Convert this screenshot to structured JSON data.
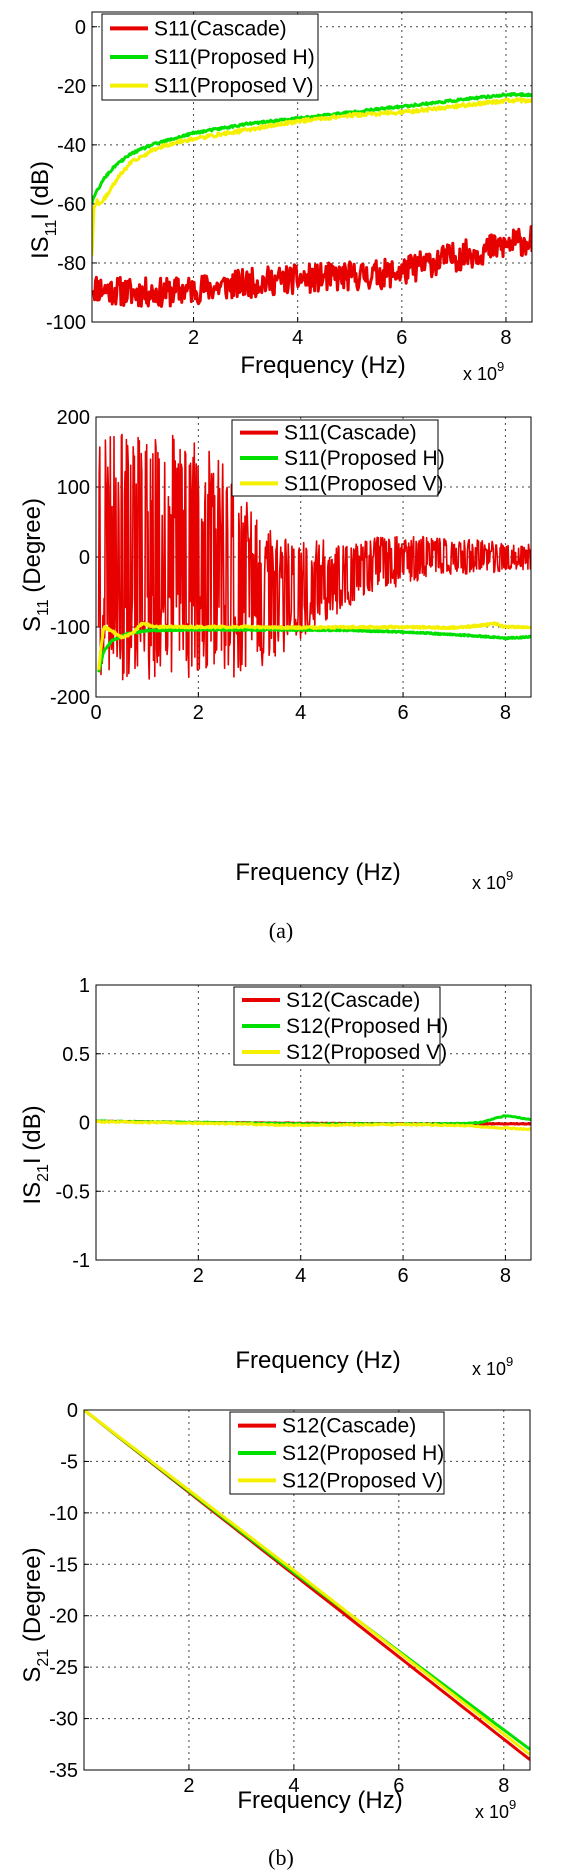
{
  "chart_data": [
    {
      "type": "line",
      "ylabel": "IS11I (dB)",
      "xlabel": "Frequency (Hz)",
      "x_multiplier": "x 10^9",
      "xlim": [
        0.05,
        8.5
      ],
      "ylim": [
        -100,
        5
      ],
      "xticks": [
        2,
        4,
        6,
        8
      ],
      "yticks": [
        0,
        -20,
        -40,
        -60,
        -80,
        -100
      ],
      "grid": true,
      "legend_position": "top-left",
      "series": [
        {
          "name": "S11(Cascade)",
          "color": "#e60000",
          "x": [
            0.05,
            0.3,
            0.8,
            1.5,
            2.5,
            3.5,
            4.5,
            5.5,
            6.0,
            6.5,
            7.0,
            7.5,
            8.0,
            8.5
          ],
          "y": [
            -88,
            -89,
            -90,
            -90,
            -88,
            -86,
            -85,
            -84,
            -83,
            -80,
            -78,
            -76,
            -74,
            -72
          ],
          "noise": 5
        },
        {
          "name": "S11(Proposed H)",
          "color": "#00e000",
          "x": [
            0.05,
            0.1,
            0.2,
            0.3,
            0.5,
            0.8,
            1.2,
            1.6,
            2.0,
            3.0,
            4.0,
            5.0,
            6.0,
            7.0,
            8.0,
            8.5
          ],
          "y": [
            -60,
            -57,
            -54,
            -51,
            -47,
            -43,
            -40,
            -38,
            -36,
            -33,
            -31,
            -29,
            -27,
            -25,
            -23,
            -23
          ],
          "noise": 0.4
        },
        {
          "name": "S11(Proposed V)",
          "color": "#f5f000",
          "x": [
            0.05,
            0.08,
            0.15,
            0.2,
            0.3,
            0.4,
            0.6,
            0.8,
            1.0,
            1.3,
            1.7,
            2.0,
            3.0,
            4.0,
            5.0,
            6.0,
            7.0,
            8.0,
            8.5
          ],
          "y": [
            -78,
            -62,
            -59,
            -60,
            -58,
            -55,
            -50,
            -46,
            -44,
            -41,
            -39,
            -38,
            -35,
            -32,
            -30,
            -29,
            -27,
            -25,
            -25
          ],
          "noise": 0.6
        }
      ]
    },
    {
      "type": "line",
      "ylabel": "S11 (Degree)",
      "xlabel": "Frequency (Hz)",
      "x_multiplier": "x 10^9",
      "xlim": [
        0,
        8.5
      ],
      "ylim": [
        -200,
        200
      ],
      "xticks": [
        0,
        2,
        4,
        6,
        8
      ],
      "yticks": [
        200,
        100,
        0,
        -100,
        -200
      ],
      "grid": true,
      "legend_position": "top-right",
      "series": [
        {
          "name": "S11(Cascade)",
          "color": "#e60000",
          "x": [
            0.05,
            0.5,
            1.0,
            1.5,
            2.0,
            2.5,
            3.0,
            3.5,
            4.0,
            4.5,
            5.0,
            5.5,
            6.0,
            6.5,
            7.0,
            7.5,
            8.0,
            8.5
          ],
          "y": [
            0,
            0,
            0,
            0,
            0,
            -20,
            -40,
            -60,
            -50,
            -35,
            -25,
            -10,
            -5,
            0,
            0,
            0,
            0,
            0
          ],
          "amplitude": [
            180,
            180,
            175,
            175,
            170,
            160,
            120,
            90,
            70,
            60,
            45,
            40,
            35,
            30,
            25,
            25,
            20,
            20
          ]
        },
        {
          "name": "S11(Proposed H)",
          "color": "#00e000",
          "x": [
            0.05,
            0.15,
            0.3,
            0.6,
            1.0,
            2.0,
            3.0,
            4.0,
            5.0,
            6.0,
            7.0,
            7.5,
            8.0,
            8.5
          ],
          "y": [
            -165,
            -135,
            -120,
            -110,
            -105,
            -104,
            -104,
            -104,
            -105,
            -107,
            -111,
            -113,
            -116,
            -114
          ],
          "noise": 1
        },
        {
          "name": "S11(Proposed V)",
          "color": "#f5f000",
          "x": [
            0.05,
            0.15,
            0.3,
            0.5,
            0.7,
            0.9,
            1.2,
            2.0,
            3.0,
            4.0,
            5.0,
            6.0,
            7.0,
            7.5,
            7.8,
            8.0,
            8.5
          ],
          "y": [
            -160,
            -100,
            -105,
            -115,
            -110,
            -95,
            -100,
            -100,
            -100,
            -101,
            -100,
            -100,
            -101,
            -98,
            -95,
            -100,
            -100
          ],
          "noise": 1.5
        }
      ]
    },
    {
      "type": "line",
      "ylabel": "IS21I (dB)",
      "xlabel": "Frequency (Hz)",
      "x_multiplier": "x 10^9",
      "xlim": [
        0,
        8.5
      ],
      "ylim": [
        -1,
        1
      ],
      "xticks": [
        2,
        4,
        6,
        8
      ],
      "yticks": [
        1,
        0.5,
        0,
        -0.5,
        -1
      ],
      "grid": true,
      "legend_position": "top-right",
      "series": [
        {
          "name": "S12(Cascade)",
          "color": "#e60000",
          "x": [
            0,
            2,
            4,
            6,
            7,
            8,
            8.5
          ],
          "y": [
            0.01,
            0.0,
            -0.005,
            -0.01,
            -0.01,
            -0.01,
            -0.01
          ],
          "noise": 0.002
        },
        {
          "name": "S12(Proposed H)",
          "color": "#00e000",
          "x": [
            0,
            2,
            4,
            6,
            7,
            7.5,
            7.8,
            8.0,
            8.2,
            8.5
          ],
          "y": [
            0.01,
            0.0,
            -0.01,
            -0.01,
            -0.01,
            0.0,
            0.03,
            0.05,
            0.04,
            0.02
          ],
          "noise": 0.003
        },
        {
          "name": "S12(Proposed V)",
          "color": "#f5f000",
          "x": [
            0,
            2,
            4,
            6,
            7,
            8,
            8.5
          ],
          "y": [
            0.005,
            -0.005,
            -0.02,
            -0.015,
            -0.02,
            -0.04,
            -0.05
          ],
          "noise": 0.005
        }
      ]
    },
    {
      "type": "line",
      "ylabel": "S21 (Degree)",
      "xlabel": "Frequency (Hz)",
      "x_multiplier": "x 10^9",
      "xlim": [
        0,
        8.5
      ],
      "ylim": [
        -35,
        0
      ],
      "xticks": [
        2,
        4,
        6,
        8
      ],
      "yticks": [
        0,
        -5,
        -10,
        -15,
        -20,
        -25,
        -30,
        -35
      ],
      "grid": true,
      "legend_position": "top-right",
      "series": [
        {
          "name": "S12(Cascade)",
          "color": "#e60000",
          "x": [
            0,
            8.5
          ],
          "y": [
            0,
            -34
          ],
          "noise": 0
        },
        {
          "name": "S12(Proposed H)",
          "color": "#00e000",
          "x": [
            0,
            4,
            8.5
          ],
          "y": [
            0,
            -15.8,
            -33
          ],
          "noise": 0
        },
        {
          "name": "S12(Proposed V)",
          "color": "#f5f000",
          "x": [
            0,
            4,
            8.5
          ],
          "y": [
            0,
            -15.6,
            -33.5
          ],
          "noise": 0
        }
      ]
    }
  ],
  "captions": {
    "a": "(a)",
    "b": "(b)"
  },
  "axis_text": {
    "xlabel": "Frequency (Hz)",
    "mult_base": "x 10",
    "mult_exp": "9",
    "c1_ylabel_base": "IS",
    "c1_ylabel_sub": "11",
    "c1_ylabel_tail": "I (dB)",
    "c2_ylabel_base": "S",
    "c2_ylabel_sub": "11",
    "c2_ylabel_tail": " (Degree)",
    "c3_ylabel_base": "IS",
    "c3_ylabel_sub": "21",
    "c3_ylabel_tail": "I (dB)",
    "c4_ylabel_base": "S",
    "c4_ylabel_sub": "21",
    "c4_ylabel_tail": " (Degree)"
  }
}
